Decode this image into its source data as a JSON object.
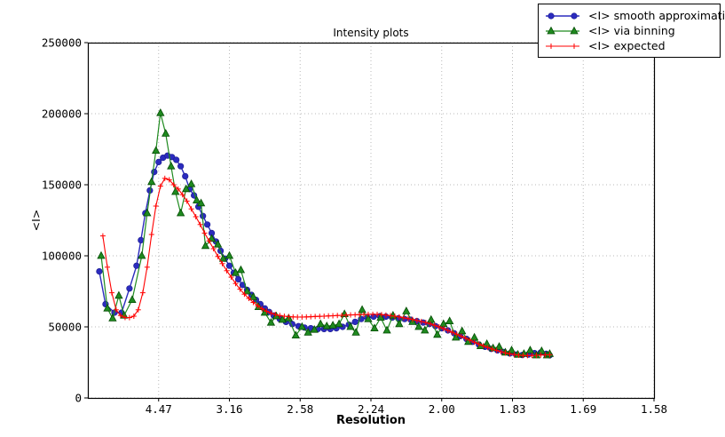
{
  "chart_data": {
    "type": "line",
    "title": "Intensity plots",
    "xlabel": "Resolution",
    "ylabel": "<I>",
    "grid": true,
    "legend_position": "top-right",
    "x_axis": {
      "unit": "1/d^2 (labels shown as resolution d in Angstrom)",
      "min": 0.0,
      "max": 0.4,
      "ticks": [
        {
          "s": 0.05,
          "label": "4.47"
        },
        {
          "s": 0.1,
          "label": "3.16"
        },
        {
          "s": 0.15,
          "label": "2.58"
        },
        {
          "s": 0.2,
          "label": "2.24"
        },
        {
          "s": 0.25,
          "label": "2.00"
        },
        {
          "s": 0.3,
          "label": "1.83"
        },
        {
          "s": 0.35,
          "label": "1.69"
        },
        {
          "s": 0.4,
          "label": "1.58"
        }
      ]
    },
    "y_axis": {
      "min": 0,
      "max": 250000,
      "ticks": [
        {
          "value": 0,
          "label": "0"
        },
        {
          "value": 50000,
          "label": "50000"
        },
        {
          "value": 100000,
          "label": "100000"
        },
        {
          "value": 150000,
          "label": "150000"
        },
        {
          "value": 200000,
          "label": "200000"
        },
        {
          "value": 250000,
          "label": "250000"
        }
      ]
    },
    "series": [
      {
        "name": "<I> smooth approximation",
        "color": "#2b2bbe",
        "edge_color": "#1c1c8f",
        "marker": "circle",
        "line_width": 1.4,
        "points": [
          [
            0.0081,
            89000
          ],
          [
            0.0125,
            66000
          ],
          [
            0.0188,
            60000
          ],
          [
            0.0238,
            60000
          ],
          [
            0.0294,
            77000
          ],
          [
            0.0344,
            93000
          ],
          [
            0.0375,
            111000
          ],
          [
            0.0406,
            130000
          ],
          [
            0.0438,
            146000
          ],
          [
            0.0469,
            159000
          ],
          [
            0.05,
            166000
          ],
          [
            0.0531,
            169000
          ],
          [
            0.0563,
            170500
          ],
          [
            0.0594,
            169500
          ],
          [
            0.0625,
            167500
          ],
          [
            0.0656,
            163000
          ],
          [
            0.0688,
            156000
          ],
          [
            0.0719,
            147000
          ],
          [
            0.075,
            142500
          ],
          [
            0.0781,
            134500
          ],
          [
            0.0813,
            128000
          ],
          [
            0.0844,
            122000
          ],
          [
            0.0875,
            116000
          ],
          [
            0.0906,
            110000
          ],
          [
            0.0938,
            103500
          ],
          [
            0.0969,
            98000
          ],
          [
            0.1,
            93000
          ],
          [
            0.1031,
            88000
          ],
          [
            0.1063,
            83500
          ],
          [
            0.1094,
            79500
          ],
          [
            0.1125,
            76000
          ],
          [
            0.1156,
            72500
          ],
          [
            0.1188,
            69000
          ],
          [
            0.1219,
            66000
          ],
          [
            0.125,
            63000
          ],
          [
            0.1281,
            60500
          ],
          [
            0.1313,
            58000
          ],
          [
            0.1356,
            55500
          ],
          [
            0.14,
            53500
          ],
          [
            0.1444,
            52000
          ],
          [
            0.1488,
            50500
          ],
          [
            0.1531,
            49500
          ],
          [
            0.1575,
            49000
          ],
          [
            0.1625,
            48500
          ],
          [
            0.1669,
            48500
          ],
          [
            0.1713,
            48500
          ],
          [
            0.1756,
            49000
          ],
          [
            0.18,
            50000
          ],
          [
            0.1844,
            51500
          ],
          [
            0.1888,
            53500
          ],
          [
            0.1931,
            55500
          ],
          [
            0.1975,
            56500
          ],
          [
            0.2019,
            57200
          ],
          [
            0.2063,
            57500
          ],
          [
            0.2106,
            57200
          ],
          [
            0.215,
            56500
          ],
          [
            0.2194,
            56000
          ],
          [
            0.2238,
            55500
          ],
          [
            0.2281,
            55000
          ],
          [
            0.2325,
            54000
          ],
          [
            0.2369,
            53000
          ],
          [
            0.2413,
            52000
          ],
          [
            0.2456,
            50500
          ],
          [
            0.25,
            49000
          ],
          [
            0.2544,
            47500
          ],
          [
            0.2588,
            45500
          ],
          [
            0.2631,
            43500
          ],
          [
            0.2675,
            41500
          ],
          [
            0.2719,
            39500
          ],
          [
            0.2763,
            37500
          ],
          [
            0.2806,
            36000
          ],
          [
            0.285,
            34500
          ],
          [
            0.2894,
            33500
          ],
          [
            0.2938,
            32300
          ],
          [
            0.2981,
            31300
          ],
          [
            0.3025,
            30500
          ],
          [
            0.3069,
            30200
          ],
          [
            0.3113,
            30500
          ],
          [
            0.3156,
            31500
          ],
          [
            0.32,
            32000
          ],
          [
            0.3238,
            31000
          ],
          [
            0.3263,
            30000
          ]
        ]
      },
      {
        "name": "<I> via binning",
        "color": "#1f8a1f",
        "edge_color": "#064d06",
        "marker": "triangle",
        "line_width": 1.2,
        "points": [
          [
            0.0094,
            100000
          ],
          [
            0.0138,
            63000
          ],
          [
            0.0175,
            56000
          ],
          [
            0.0219,
            72000
          ],
          [
            0.0256,
            58000
          ],
          [
            0.0313,
            69000
          ],
          [
            0.0381,
            100000
          ],
          [
            0.0419,
            130000
          ],
          [
            0.045,
            152000
          ],
          [
            0.0481,
            174000
          ],
          [
            0.0513,
            200500
          ],
          [
            0.055,
            186000
          ],
          [
            0.0588,
            163000
          ],
          [
            0.0619,
            145000
          ],
          [
            0.0656,
            130000
          ],
          [
            0.0694,
            147000
          ],
          [
            0.0731,
            150500
          ],
          [
            0.0769,
            139000
          ],
          [
            0.08,
            137000
          ],
          [
            0.0831,
            107000
          ],
          [
            0.0875,
            112000
          ],
          [
            0.0919,
            108000
          ],
          [
            0.0956,
            98000
          ],
          [
            0.1,
            100000
          ],
          [
            0.1044,
            88000
          ],
          [
            0.1081,
            90000
          ],
          [
            0.1125,
            75000
          ],
          [
            0.1169,
            71000
          ],
          [
            0.1206,
            64000
          ],
          [
            0.125,
            60000
          ],
          [
            0.1294,
            53000
          ],
          [
            0.1331,
            57500
          ],
          [
            0.1375,
            55000
          ],
          [
            0.1419,
            56000
          ],
          [
            0.1469,
            44000
          ],
          [
            0.1513,
            50000
          ],
          [
            0.1556,
            46000
          ],
          [
            0.16,
            48000
          ],
          [
            0.1644,
            52000
          ],
          [
            0.1688,
            50500
          ],
          [
            0.1731,
            51000
          ],
          [
            0.1775,
            52000
          ],
          [
            0.1813,
            59000
          ],
          [
            0.1856,
            50000
          ],
          [
            0.1894,
            46000
          ],
          [
            0.1938,
            62000
          ],
          [
            0.1981,
            55500
          ],
          [
            0.2025,
            49000
          ],
          [
            0.2069,
            56500
          ],
          [
            0.2113,
            47500
          ],
          [
            0.2156,
            58000
          ],
          [
            0.22,
            52000
          ],
          [
            0.225,
            61000
          ],
          [
            0.2294,
            53500
          ],
          [
            0.2338,
            50000
          ],
          [
            0.2381,
            47500
          ],
          [
            0.2425,
            55000
          ],
          [
            0.2469,
            44500
          ],
          [
            0.2513,
            52000
          ],
          [
            0.2556,
            54000
          ],
          [
            0.26,
            42500
          ],
          [
            0.2644,
            47000
          ],
          [
            0.2688,
            39500
          ],
          [
            0.2731,
            42500
          ],
          [
            0.2775,
            36500
          ],
          [
            0.2819,
            38000
          ],
          [
            0.2863,
            35000
          ],
          [
            0.2906,
            36000
          ],
          [
            0.295,
            32000
          ],
          [
            0.2994,
            33500
          ],
          [
            0.3038,
            30500
          ],
          [
            0.3081,
            31000
          ],
          [
            0.3125,
            33500
          ],
          [
            0.3169,
            30000
          ],
          [
            0.3206,
            33000
          ],
          [
            0.3244,
            30000
          ],
          [
            0.3263,
            31000
          ]
        ]
      },
      {
        "name": "<I> expected",
        "color": "#ff0000",
        "edge_color": "#ff0000",
        "marker": "plus",
        "line_width": 1.1,
        "points": [
          [
            0.0106,
            114000
          ],
          [
            0.0138,
            92000
          ],
          [
            0.0169,
            74000
          ],
          [
            0.02,
            62000
          ],
          [
            0.0231,
            58000
          ],
          [
            0.0263,
            56600
          ],
          [
            0.0294,
            56500
          ],
          [
            0.0325,
            57500
          ],
          [
            0.0356,
            62000
          ],
          [
            0.0388,
            74000
          ],
          [
            0.0419,
            92000
          ],
          [
            0.045,
            115000
          ],
          [
            0.0481,
            135000
          ],
          [
            0.0513,
            149000
          ],
          [
            0.0544,
            154500
          ],
          [
            0.0575,
            153500
          ],
          [
            0.0606,
            150000
          ],
          [
            0.0638,
            147000
          ],
          [
            0.0669,
            143000
          ],
          [
            0.07,
            138500
          ],
          [
            0.0731,
            133000
          ],
          [
            0.0763,
            127500
          ],
          [
            0.0794,
            122000
          ],
          [
            0.0825,
            116000
          ],
          [
            0.0856,
            110500
          ],
          [
            0.0888,
            105000
          ],
          [
            0.0919,
            99500
          ],
          [
            0.095,
            94500
          ],
          [
            0.0981,
            89500
          ],
          [
            0.1013,
            85000
          ],
          [
            0.1044,
            80500
          ],
          [
            0.1075,
            76500
          ],
          [
            0.1106,
            73000
          ],
          [
            0.1138,
            70000
          ],
          [
            0.1169,
            67200
          ],
          [
            0.12,
            64800
          ],
          [
            0.1231,
            62700
          ],
          [
            0.1263,
            61000
          ],
          [
            0.1294,
            59700
          ],
          [
            0.1325,
            58700
          ],
          [
            0.1356,
            58000
          ],
          [
            0.1388,
            57500
          ],
          [
            0.1419,
            57200
          ],
          [
            0.145,
            57000
          ],
          [
            0.1481,
            56900
          ],
          [
            0.1513,
            56900
          ],
          [
            0.1544,
            57000
          ],
          [
            0.1575,
            57100
          ],
          [
            0.1606,
            57300
          ],
          [
            0.1638,
            57400
          ],
          [
            0.1669,
            57500
          ],
          [
            0.17,
            57700
          ],
          [
            0.1731,
            57800
          ],
          [
            0.1763,
            58000
          ],
          [
            0.1794,
            58100
          ],
          [
            0.1825,
            58300
          ],
          [
            0.1856,
            58400
          ],
          [
            0.1888,
            58500
          ],
          [
            0.1919,
            58600
          ],
          [
            0.195,
            58700
          ],
          [
            0.1981,
            58800
          ],
          [
            0.2013,
            58800
          ],
          [
            0.2044,
            58800
          ],
          [
            0.2075,
            58600
          ],
          [
            0.2106,
            58300
          ],
          [
            0.2138,
            57900
          ],
          [
            0.2169,
            57500
          ],
          [
            0.22,
            57000
          ],
          [
            0.2231,
            56400
          ],
          [
            0.2263,
            55800
          ],
          [
            0.2294,
            55200
          ],
          [
            0.2325,
            54500
          ],
          [
            0.2356,
            53800
          ],
          [
            0.2388,
            53000
          ],
          [
            0.2419,
            52100
          ],
          [
            0.245,
            51100
          ],
          [
            0.2481,
            50000
          ],
          [
            0.2513,
            48800
          ],
          [
            0.2544,
            47500
          ],
          [
            0.2575,
            46200
          ],
          [
            0.2606,
            44800
          ],
          [
            0.2638,
            43400
          ],
          [
            0.2669,
            42000
          ],
          [
            0.27,
            40600
          ],
          [
            0.2731,
            39200
          ],
          [
            0.2763,
            37900
          ],
          [
            0.2794,
            36700
          ],
          [
            0.2825,
            35500
          ],
          [
            0.2856,
            34400
          ],
          [
            0.2888,
            33400
          ],
          [
            0.2919,
            32500
          ],
          [
            0.295,
            31700
          ],
          [
            0.2981,
            31000
          ],
          [
            0.3013,
            30500
          ],
          [
            0.3044,
            30100
          ],
          [
            0.3075,
            29900
          ],
          [
            0.3106,
            29800
          ],
          [
            0.3138,
            29900
          ],
          [
            0.3169,
            30000
          ],
          [
            0.32,
            30200
          ],
          [
            0.3231,
            30300
          ],
          [
            0.3263,
            30400
          ]
        ]
      }
    ]
  }
}
